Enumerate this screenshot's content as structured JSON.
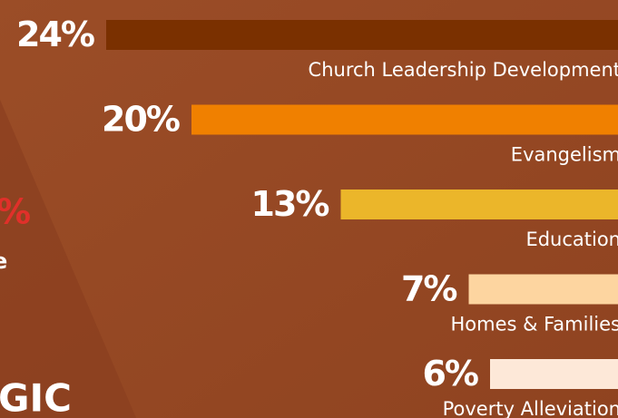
{
  "chart_data": {
    "type": "bar",
    "orientation": "horizontal",
    "categories": [
      "Church Leadership Development",
      "Evangelism",
      "Education",
      "Homes & Families",
      "Poverty Alleviation"
    ],
    "values": [
      24,
      20,
      13,
      7,
      6
    ],
    "value_labels": [
      "24%",
      "20%",
      "13%",
      "7%",
      "6%"
    ],
    "colors": [
      "#7a3000",
      "#f08000",
      "#ebb62a",
      "#fdd5a0",
      "#fde8d8"
    ],
    "annotations": [
      "%",
      "e",
      "GIC"
    ]
  }
}
